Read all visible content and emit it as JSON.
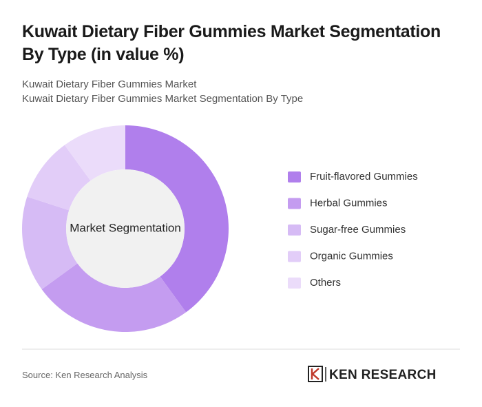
{
  "chart_data": {
    "type": "donut",
    "title": "Kuwait Dietary Fiber Gummies Market Segmentation By Type (in value %)",
    "subtitle": [
      "Kuwait Dietary Fiber Gummies Market",
      "Kuwait Dietary Fiber Gummies Market Segmentation By Type"
    ],
    "center_label": "Market Segmentation",
    "categories": [
      "Fruit-flavored Gummies",
      "Herbal Gummies",
      "Sugar-free Gummies",
      "Organic Gummies",
      "Others"
    ],
    "values": [
      40,
      25,
      15,
      10,
      10
    ],
    "colors": [
      "#b07fec",
      "#c49cf0",
      "#d6bbf5",
      "#e2cdf8",
      "#ebdcfa"
    ],
    "legend": "right",
    "source": "Source: Ken Research Analysis",
    "brand": "KEN RESEARCH"
  }
}
